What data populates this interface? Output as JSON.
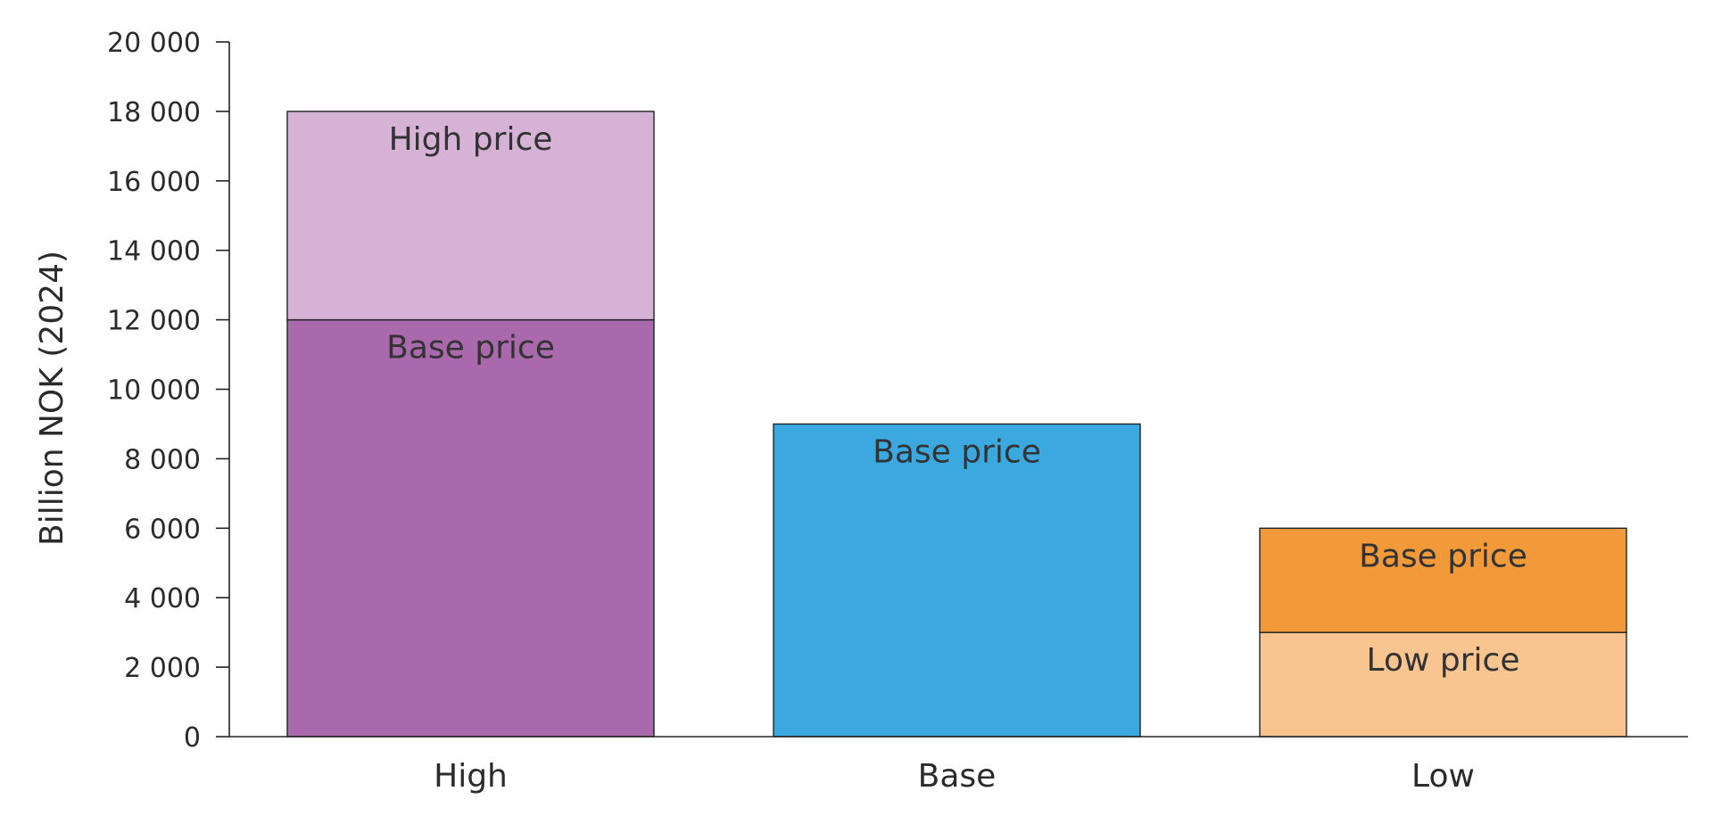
{
  "chart_data": {
    "type": "bar",
    "stacked": true,
    "title": "",
    "xlabel": "",
    "ylabel": "Billion NOK (2024)",
    "ylim": [
      0,
      20000
    ],
    "ytick_values": [
      0,
      2000,
      4000,
      6000,
      8000,
      10000,
      12000,
      14000,
      16000,
      18000,
      20000
    ],
    "ytick_labels": [
      "0",
      "2 000",
      "4 000",
      "6 000",
      "8 000",
      "10 000",
      "12 000",
      "14 000",
      "16 000",
      "18 000",
      "20 000"
    ],
    "categories": [
      "High",
      "Base",
      "Low"
    ],
    "bars": [
      {
        "category": "High",
        "segments": [
          {
            "label": "Base price",
            "value": 12000,
            "color": "#aa69ad"
          },
          {
            "label": "High price",
            "value": 6000,
            "color": "#d5b2d6"
          }
        ]
      },
      {
        "category": "Base",
        "segments": [
          {
            "label": "Base price",
            "value": 9000,
            "color": "#3ba9df"
          }
        ]
      },
      {
        "category": "Low",
        "segments": [
          {
            "label": "Low price",
            "value": 3000,
            "color": "#f8c590"
          },
          {
            "label": "Base price",
            "value": 3000,
            "color": "#f29a39"
          }
        ]
      }
    ],
    "grid": false,
    "legend": "none"
  }
}
